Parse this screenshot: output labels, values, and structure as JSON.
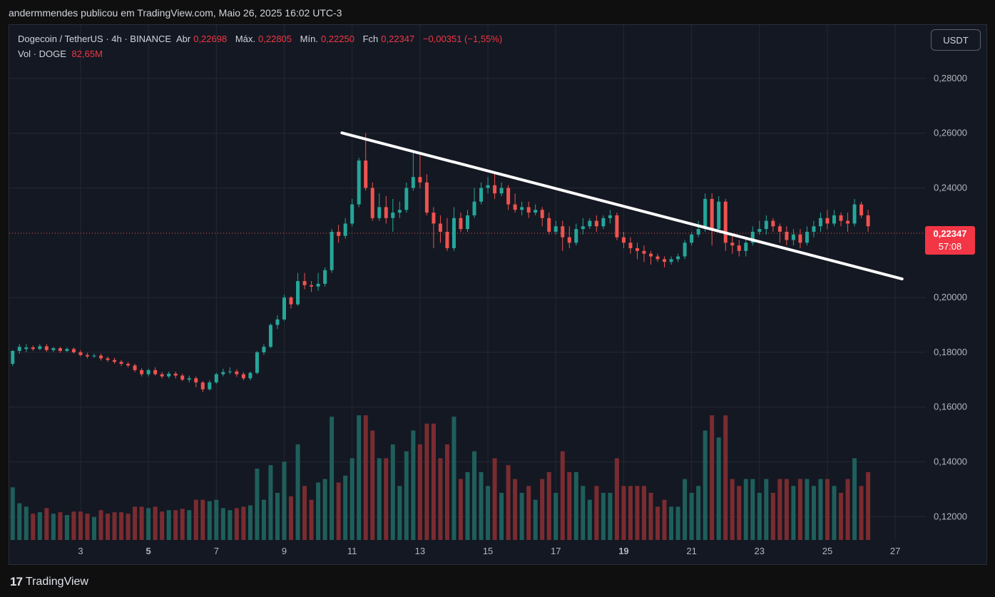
{
  "publisher": "andermmendes publicou em TradingView.com, Maio 26, 2025 16:02 UTC-3",
  "legend": {
    "symbol": "Dogecoin / TetherUS · 4h · BINANCE",
    "open_label": "Abr",
    "open": "0,22698",
    "high_label": "Máx.",
    "high": "0,22805",
    "low_label": "Mín.",
    "low": "0,22250",
    "close_label": "Fch",
    "close": "0,22347",
    "change": "−0,00351 (−1,55%)",
    "vol_label": "Vol · DOGE",
    "vol": "82,65M"
  },
  "currency_button": "USDT",
  "price_tag": {
    "price": "0,22347",
    "countdown": "57:08"
  },
  "brand": {
    "logo": "17",
    "name": "TradingView"
  },
  "colors": {
    "up": "#26a69a",
    "down": "#ef5350",
    "vol_up": "#1f5f5b",
    "vol_down": "#7a2c31",
    "background": "#141822",
    "grid": "#242833",
    "trendline": "#ffffff"
  },
  "chart_data": {
    "type": "candlestick",
    "x_ticks": [
      "3",
      "5",
      "7",
      "9",
      "11",
      "13",
      "15",
      "17",
      "19",
      "21",
      "23",
      "25",
      "27"
    ],
    "y_ticks": [
      "0,28000",
      "0,26000",
      "0,24000",
      "0,20000",
      "0,18000",
      "0,16000",
      "0,14000",
      "0,12000"
    ],
    "y_range": [
      0.1115,
      0.2995
    ],
    "x_range": [
      0.9,
      27.9
    ],
    "current_price": 0.22347,
    "trendline": {
      "start": [
        10.7,
        0.2601
      ],
      "end": [
        27.2,
        0.2068
      ]
    },
    "candles": [
      [
        1.0,
        0.1758,
        0.1805,
        0.175,
        0.1808
      ],
      [
        1.2,
        0.1805,
        0.182,
        0.1795,
        0.183
      ],
      [
        1.4,
        0.1812,
        0.1818,
        0.18,
        0.183
      ],
      [
        1.6,
        0.1818,
        0.1812,
        0.1805,
        0.1825
      ],
      [
        1.8,
        0.1812,
        0.1822,
        0.1808,
        0.183
      ],
      [
        2.0,
        0.1822,
        0.1808,
        0.1802,
        0.183
      ],
      [
        2.2,
        0.1808,
        0.1815,
        0.18,
        0.182
      ],
      [
        2.4,
        0.1815,
        0.1805,
        0.1798,
        0.182
      ],
      [
        2.6,
        0.1805,
        0.1812,
        0.18,
        0.1818
      ],
      [
        2.8,
        0.1812,
        0.18,
        0.1795,
        0.1818
      ],
      [
        3.0,
        0.18,
        0.179,
        0.1785,
        0.1808
      ],
      [
        3.2,
        0.179,
        0.1785,
        0.1778,
        0.1798
      ],
      [
        3.4,
        0.1785,
        0.1788,
        0.178,
        0.1795
      ],
      [
        3.6,
        0.1788,
        0.1778,
        0.177,
        0.1795
      ],
      [
        3.8,
        0.1778,
        0.1772,
        0.1765,
        0.1785
      ],
      [
        4.0,
        0.1772,
        0.1765,
        0.1758,
        0.178
      ],
      [
        4.2,
        0.1765,
        0.1758,
        0.175,
        0.1772
      ],
      [
        4.4,
        0.1758,
        0.1752,
        0.1745,
        0.1765
      ],
      [
        4.6,
        0.1752,
        0.1735,
        0.1728,
        0.1758
      ],
      [
        4.8,
        0.1735,
        0.172,
        0.1712,
        0.1742
      ],
      [
        5.0,
        0.172,
        0.1735,
        0.1712,
        0.174
      ],
      [
        5.2,
        0.1735,
        0.172,
        0.1715,
        0.1745
      ],
      [
        5.4,
        0.172,
        0.1712,
        0.1705,
        0.1728
      ],
      [
        5.6,
        0.1712,
        0.1722,
        0.1705,
        0.173
      ],
      [
        5.8,
        0.1722,
        0.1715,
        0.1705,
        0.173
      ],
      [
        6.0,
        0.1715,
        0.17,
        0.1695,
        0.1722
      ],
      [
        6.2,
        0.17,
        0.1705,
        0.169,
        0.1715
      ],
      [
        6.4,
        0.1705,
        0.169,
        0.1672,
        0.1712
      ],
      [
        6.6,
        0.169,
        0.1665,
        0.1655,
        0.1695
      ],
      [
        6.8,
        0.1665,
        0.169,
        0.166,
        0.1698
      ],
      [
        7.0,
        0.169,
        0.172,
        0.1685,
        0.1725
      ],
      [
        7.2,
        0.172,
        0.1728,
        0.1712,
        0.174
      ],
      [
        7.4,
        0.1728,
        0.173,
        0.172,
        0.1745
      ],
      [
        7.6,
        0.173,
        0.172,
        0.171,
        0.1738
      ],
      [
        7.8,
        0.172,
        0.1705,
        0.1698,
        0.1728
      ],
      [
        8.0,
        0.1705,
        0.1725,
        0.1698,
        0.173
      ],
      [
        8.2,
        0.1725,
        0.18,
        0.172,
        0.1805
      ],
      [
        8.4,
        0.18,
        0.182,
        0.179,
        0.183
      ],
      [
        8.6,
        0.182,
        0.19,
        0.1815,
        0.1905
      ],
      [
        8.8,
        0.19,
        0.192,
        0.1885,
        0.1935
      ],
      [
        9.0,
        0.192,
        0.2,
        0.1915,
        0.201
      ],
      [
        9.2,
        0.2,
        0.1975,
        0.196,
        0.2005
      ],
      [
        9.4,
        0.1975,
        0.206,
        0.197,
        0.209
      ],
      [
        9.6,
        0.206,
        0.2045,
        0.203,
        0.209
      ],
      [
        9.8,
        0.2045,
        0.204,
        0.202,
        0.206
      ],
      [
        10.0,
        0.204,
        0.205,
        0.2025,
        0.209
      ],
      [
        10.2,
        0.205,
        0.21,
        0.204,
        0.211
      ],
      [
        10.4,
        0.21,
        0.224,
        0.209,
        0.225
      ],
      [
        10.6,
        0.224,
        0.2225,
        0.22,
        0.2265
      ],
      [
        10.8,
        0.2225,
        0.227,
        0.2215,
        0.229
      ],
      [
        11.0,
        0.227,
        0.234,
        0.226,
        0.236
      ],
      [
        11.2,
        0.234,
        0.25,
        0.233,
        0.251
      ],
      [
        11.4,
        0.25,
        0.24,
        0.239,
        0.26
      ],
      [
        11.6,
        0.24,
        0.229,
        0.228,
        0.242
      ],
      [
        11.8,
        0.229,
        0.233,
        0.228,
        0.238
      ],
      [
        12.0,
        0.233,
        0.229,
        0.227,
        0.237
      ],
      [
        12.2,
        0.229,
        0.231,
        0.224,
        0.236
      ],
      [
        12.4,
        0.231,
        0.232,
        0.229,
        0.235
      ],
      [
        12.6,
        0.232,
        0.24,
        0.231,
        0.242
      ],
      [
        12.8,
        0.24,
        0.244,
        0.239,
        0.253
      ],
      [
        13.0,
        0.244,
        0.242,
        0.24,
        0.252
      ],
      [
        13.2,
        0.242,
        0.231,
        0.23,
        0.245
      ],
      [
        13.4,
        0.231,
        0.227,
        0.218,
        0.233
      ],
      [
        13.6,
        0.227,
        0.224,
        0.22,
        0.23
      ],
      [
        13.8,
        0.224,
        0.218,
        0.217,
        0.229
      ],
      [
        14.0,
        0.218,
        0.229,
        0.217,
        0.233
      ],
      [
        14.2,
        0.229,
        0.225,
        0.224,
        0.231
      ],
      [
        14.4,
        0.225,
        0.23,
        0.224,
        0.232
      ],
      [
        14.6,
        0.23,
        0.235,
        0.229,
        0.24
      ],
      [
        14.8,
        0.235,
        0.24,
        0.234,
        0.242
      ],
      [
        15.0,
        0.24,
        0.241,
        0.238,
        0.244
      ],
      [
        15.2,
        0.241,
        0.238,
        0.236,
        0.246
      ],
      [
        15.4,
        0.238,
        0.24,
        0.237,
        0.242
      ],
      [
        15.6,
        0.24,
        0.234,
        0.232,
        0.241
      ],
      [
        15.8,
        0.234,
        0.232,
        0.231,
        0.238
      ],
      [
        16.0,
        0.232,
        0.233,
        0.23,
        0.235
      ],
      [
        16.2,
        0.233,
        0.231,
        0.229,
        0.235
      ],
      [
        16.4,
        0.231,
        0.232,
        0.23,
        0.234
      ],
      [
        16.6,
        0.232,
        0.229,
        0.226,
        0.233
      ],
      [
        16.8,
        0.229,
        0.224,
        0.223,
        0.231
      ],
      [
        17.0,
        0.224,
        0.226,
        0.223,
        0.228
      ],
      [
        17.2,
        0.226,
        0.222,
        0.217,
        0.228
      ],
      [
        17.4,
        0.222,
        0.22,
        0.218,
        0.226
      ],
      [
        17.6,
        0.22,
        0.225,
        0.219,
        0.227
      ],
      [
        17.8,
        0.225,
        0.226,
        0.223,
        0.229
      ],
      [
        18.0,
        0.226,
        0.228,
        0.225,
        0.229
      ],
      [
        18.2,
        0.228,
        0.226,
        0.224,
        0.23
      ],
      [
        18.4,
        0.226,
        0.229,
        0.225,
        0.23
      ],
      [
        18.6,
        0.229,
        0.23,
        0.227,
        0.232
      ],
      [
        18.8,
        0.23,
        0.222,
        0.221,
        0.231
      ],
      [
        19.0,
        0.222,
        0.22,
        0.218,
        0.224
      ],
      [
        19.2,
        0.22,
        0.218,
        0.216,
        0.222
      ],
      [
        19.4,
        0.218,
        0.217,
        0.214,
        0.22
      ],
      [
        19.6,
        0.217,
        0.216,
        0.213,
        0.219
      ],
      [
        19.8,
        0.216,
        0.215,
        0.212,
        0.217
      ],
      [
        20.0,
        0.215,
        0.214,
        0.213,
        0.216
      ],
      [
        20.2,
        0.214,
        0.213,
        0.211,
        0.215
      ],
      [
        20.4,
        0.213,
        0.214,
        0.212,
        0.215
      ],
      [
        20.6,
        0.214,
        0.215,
        0.213,
        0.216
      ],
      [
        20.8,
        0.215,
        0.22,
        0.214,
        0.221
      ],
      [
        21.0,
        0.22,
        0.223,
        0.219,
        0.224
      ],
      [
        21.2,
        0.223,
        0.225,
        0.222,
        0.228
      ],
      [
        21.4,
        0.225,
        0.236,
        0.224,
        0.238
      ],
      [
        21.6,
        0.236,
        0.225,
        0.219,
        0.238
      ],
      [
        21.8,
        0.225,
        0.235,
        0.224,
        0.237
      ],
      [
        22.0,
        0.235,
        0.22,
        0.217,
        0.236
      ],
      [
        22.2,
        0.22,
        0.219,
        0.216,
        0.223
      ],
      [
        22.4,
        0.219,
        0.217,
        0.215,
        0.221
      ],
      [
        22.6,
        0.217,
        0.22,
        0.215,
        0.222
      ],
      [
        22.8,
        0.22,
        0.224,
        0.219,
        0.226
      ],
      [
        23.0,
        0.224,
        0.225,
        0.223,
        0.228
      ],
      [
        23.2,
        0.225,
        0.228,
        0.223,
        0.23
      ],
      [
        23.4,
        0.228,
        0.226,
        0.224,
        0.229
      ],
      [
        23.6,
        0.226,
        0.224,
        0.22,
        0.227
      ],
      [
        23.8,
        0.224,
        0.221,
        0.219,
        0.226
      ],
      [
        24.0,
        0.221,
        0.223,
        0.219,
        0.225
      ],
      [
        24.2,
        0.223,
        0.22,
        0.218,
        0.225
      ],
      [
        24.4,
        0.22,
        0.224,
        0.219,
        0.226
      ],
      [
        24.6,
        0.224,
        0.226,
        0.222,
        0.228
      ],
      [
        24.8,
        0.226,
        0.229,
        0.224,
        0.231
      ],
      [
        25.0,
        0.229,
        0.227,
        0.225,
        0.232
      ],
      [
        25.2,
        0.227,
        0.23,
        0.226,
        0.232
      ],
      [
        25.4,
        0.23,
        0.228,
        0.226,
        0.231
      ],
      [
        25.6,
        0.228,
        0.227,
        0.224,
        0.231
      ],
      [
        25.8,
        0.227,
        0.234,
        0.226,
        0.236
      ],
      [
        26.0,
        0.234,
        0.23,
        0.229,
        0.235
      ],
      [
        26.2,
        0.23,
        0.226,
        0.224,
        0.232
      ]
    ],
    "volume_max": 0.157
  }
}
